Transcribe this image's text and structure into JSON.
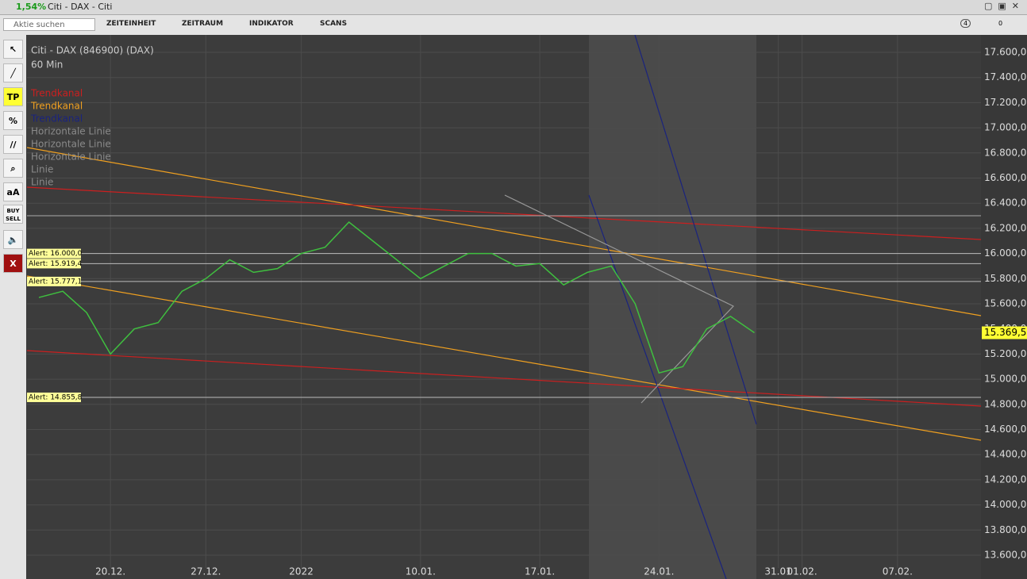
{
  "window": {
    "change": "1,54%",
    "title": "Citi - DAX - Citi"
  },
  "toolbar": {
    "search_placeholder": "Aktie suchen",
    "menus": [
      "ZEITEINHEIT",
      "ZEITRAUM",
      "INDIKATOR",
      "SCANS"
    ],
    "badge": "4",
    "count": "0"
  },
  "tools": [
    "TP",
    "%",
    "aA",
    "BUY SELL",
    "X"
  ],
  "chart_data": {
    "type": "line",
    "title": "Citi - DAX (846900) (DAX)",
    "subtitle": "60 Min",
    "legend": [
      {
        "name": "Trendkanal",
        "color": "#cc1f1f"
      },
      {
        "name": "Trendkanal",
        "color": "#f0a020"
      },
      {
        "name": "Trendkanal",
        "color": "#1a237e"
      },
      {
        "name": "Horizontale Linie",
        "color": "#8a8a8a"
      },
      {
        "name": "Horizontale Linie",
        "color": "#8a8a8a"
      },
      {
        "name": "Horizontale Linie",
        "color": "#8a8a8a"
      },
      {
        "name": "Linie",
        "color": "#8a8a8a"
      },
      {
        "name": "Linie",
        "color": "#8a8a8a"
      }
    ],
    "categories": [
      null,
      null,
      null,
      "20.12.",
      null,
      null,
      null,
      "27.12.",
      null,
      null,
      null,
      "2022",
      null,
      null,
      null,
      null,
      "10.01.",
      null,
      null,
      null,
      null,
      "17.01.",
      null,
      null,
      null,
      null,
      "24.01.",
      null,
      null,
      null,
      null,
      "31.01",
      "01.02.",
      null,
      null,
      null,
      "07.02.",
      null,
      null,
      null
    ],
    "values": [
      15650,
      15700,
      15530,
      15200,
      15400,
      15450,
      15700,
      15800,
      15950,
      15850,
      15880,
      16000,
      16050,
      16250,
      16100,
      15950,
      15800,
      15900,
      16000,
      16000,
      15900,
      15920,
      15750,
      15850,
      15900,
      15600,
      15050,
      15100,
      15400,
      15500,
      15370,
      null,
      null,
      null,
      null,
      null,
      null,
      null,
      null,
      null
    ],
    "color": "#3fbf3f",
    "ylim": [
      13600,
      17600
    ],
    "yticks": [
      {
        "value": 13600,
        "label": "13.600,0"
      },
      {
        "value": 13800,
        "label": "13.800,0"
      },
      {
        "value": 14000,
        "label": "14.000,0"
      },
      {
        "value": 14200,
        "label": "14.200,0"
      },
      {
        "value": 14400,
        "label": "14.400,0"
      },
      {
        "value": 14600,
        "label": "14.600,0"
      },
      {
        "value": 14800,
        "label": "14.800,0"
      },
      {
        "value": 15000,
        "label": "15.000,0"
      },
      {
        "value": 15200,
        "label": "15.200,0"
      },
      {
        "value": 15400,
        "label": "15.400,0"
      },
      {
        "value": 15600,
        "label": "15.600,0"
      },
      {
        "value": 15800,
        "label": "15.800,0"
      },
      {
        "value": 16000,
        "label": "16.000,0"
      },
      {
        "value": 16200,
        "label": "16.200,0"
      },
      {
        "value": 16400,
        "label": "16.400,0"
      },
      {
        "value": 16600,
        "label": "16.600,0"
      },
      {
        "value": 16800,
        "label": "16.800,0"
      },
      {
        "value": 17000,
        "label": "17.000,0"
      },
      {
        "value": 17200,
        "label": "17.200,0"
      },
      {
        "value": 17400,
        "label": "17.400,0"
      },
      {
        "value": 17600,
        "label": "17.600,0"
      }
    ],
    "grid": true,
    "alerts": [
      {
        "value": 16000,
        "label": "Alert: 16.000,0"
      },
      {
        "value": 15919.4,
        "label": "Alert: 15.919,4"
      },
      {
        "value": 15777.1,
        "label": "Alert: 15.777,1"
      },
      {
        "value": 14855.8,
        "label": "Alert: 14.855,8"
      }
    ],
    "horizontal_lines": [
      16300
    ],
    "last": {
      "value": 15369.5,
      "label": "15.369,5"
    }
  }
}
